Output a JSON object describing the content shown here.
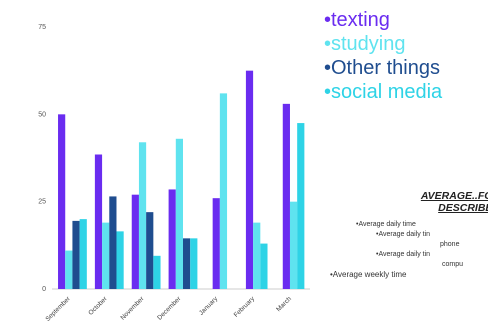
{
  "colors": {
    "texting": "#6a2cf0",
    "studying": "#5fe3ef",
    "other": "#1f4d8f",
    "social": "#2ed3e6"
  },
  "legend": [
    {
      "label": "•texting",
      "color": "#6a2cf0"
    },
    {
      "label": "•studying",
      "color": "#5fe3ef"
    },
    {
      "label": "•Other things",
      "color": "#1f4d8f"
    },
    {
      "label": "•social media",
      "color": "#2ed3e6"
    }
  ],
  "info": {
    "heading": "AVERAGE..FOR\nDESCRIBED",
    "lines": [
      "•Average daily time",
      "•Average daily tin",
      "phone",
      "•Average daily tin",
      "compu",
      "•Average weekly time"
    ]
  },
  "chart_data": {
    "type": "bar",
    "categories": [
      "September",
      "October",
      "November",
      "December",
      "January",
      "February",
      "March"
    ],
    "ylim": [
      0,
      75
    ],
    "yticks": [
      0,
      25,
      50,
      75
    ],
    "grid": false,
    "legend_position": "right",
    "series": [
      {
        "name": "texting",
        "color": "#6a2cf0",
        "values": [
          50,
          38.5,
          27,
          28.5,
          26,
          62.5,
          53
        ]
      },
      {
        "name": "studying",
        "color": "#5fe3ef",
        "values": [
          11,
          19,
          42,
          43,
          56,
          19,
          25
        ]
      },
      {
        "name": "Other things",
        "color": "#1f4d8f",
        "values": [
          19.5,
          26.5,
          22,
          14.5,
          null,
          null,
          null
        ]
      },
      {
        "name": "social media",
        "color": "#2ed3e6",
        "values": [
          20,
          16.5,
          9.5,
          14.5,
          null,
          13,
          47.5
        ]
      }
    ]
  }
}
